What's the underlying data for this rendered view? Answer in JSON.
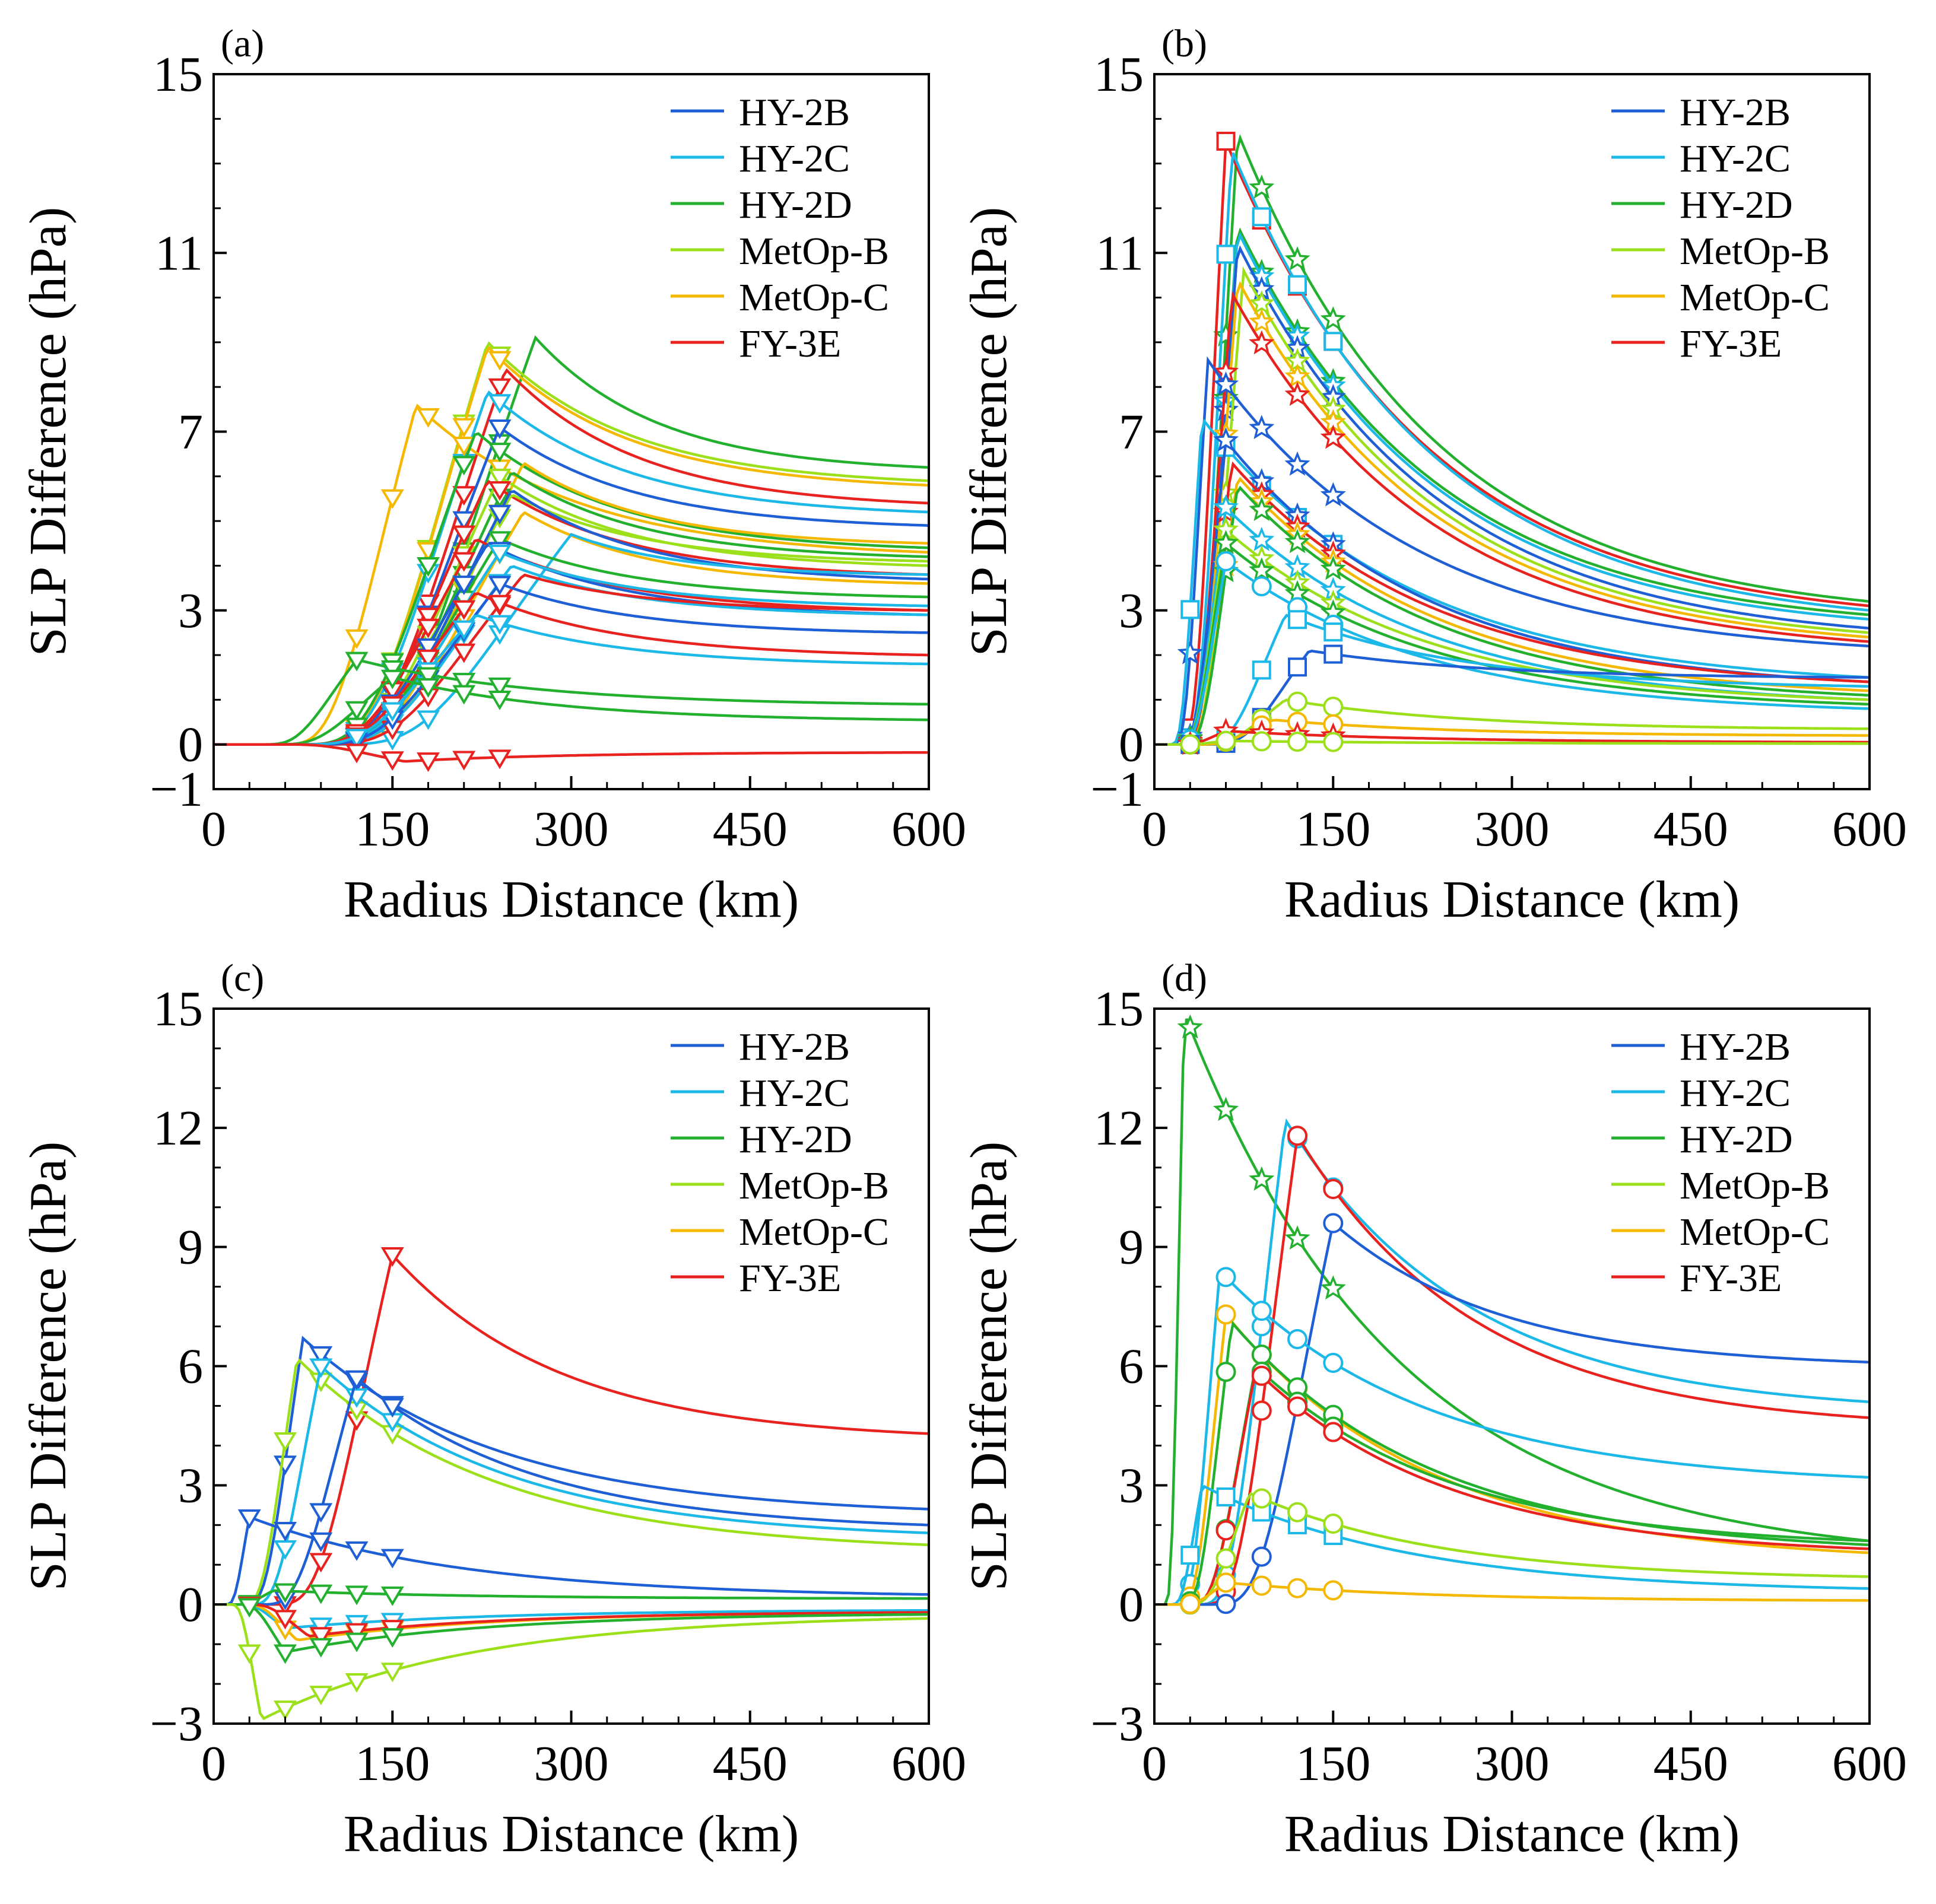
{
  "figure": {
    "type": "multi-panel line chart",
    "panels": 4
  },
  "chart_data": [
    {
      "type": "line",
      "panel_label": "(a)",
      "xlabel": "Radius Distance (km)",
      "ylabel": "SLP Difference (hPa)",
      "xlim": [
        0,
        600
      ],
      "ylim": [
        -1,
        15
      ],
      "xticks": [
        "0",
        "150",
        "300",
        "450",
        "600"
      ],
      "yticks": [
        "-1",
        "0",
        "3",
        "7",
        "11",
        "15"
      ],
      "ytick_values": [
        -1,
        0,
        3,
        7,
        11,
        15
      ],
      "grid": false,
      "legend": "top-right",
      "legend_entries": [
        {
          "name": "HY-2B",
          "color": "#1f5fd6"
        },
        {
          "name": "HY-2C",
          "color": "#1bb8e8"
        },
        {
          "name": "HY-2D",
          "color": "#22b02e"
        },
        {
          "name": "MetOp-B",
          "color": "#9be01a"
        },
        {
          "name": "MetOp-C",
          "color": "#f5b800"
        },
        {
          "name": "FY-3E",
          "color": "#e8221f"
        }
      ],
      "marker": "triangle-down",
      "marker_x": [
        120,
        150,
        180,
        210,
        240
      ],
      "series": [
        {
          "name": "HY-2D",
          "color": "#22b02e",
          "peak": 9.1,
          "rmax": 270,
          "tail": 6.2
        },
        {
          "name": "MetOp-B",
          "color": "#9be01a",
          "peak": 9.0,
          "rmax": 230,
          "tail": 5.9
        },
        {
          "name": "MetOp-C",
          "color": "#f5b800",
          "peak": 8.9,
          "rmax": 230,
          "tail": 5.8
        },
        {
          "name": "FY-3E",
          "color": "#e8221f",
          "peak": 8.4,
          "rmax": 245,
          "tail": 5.4
        },
        {
          "name": "HY-2C",
          "color": "#1bb8e8",
          "peak": 7.9,
          "rmax": 230,
          "tail": 5.2
        },
        {
          "name": "MetOp-C",
          "color": "#f5b800",
          "peak": 7.6,
          "rmax": 170,
          "tail": 4.3
        },
        {
          "name": "HY-2B",
          "color": "#1f5fd6",
          "peak": 7.1,
          "rmax": 240,
          "tail": 4.9
        },
        {
          "name": "HY-2D",
          "color": "#22b02e",
          "peak": 7.0,
          "rmax": 220,
          "tail": 4.4
        },
        {
          "name": "MetOp-C",
          "color": "#f5b800",
          "peak": 6.3,
          "rmax": 260,
          "tail": 4.5
        },
        {
          "name": "HY-2D",
          "color": "#22b02e",
          "peak": 6.1,
          "rmax": 250,
          "tail": 4.2
        },
        {
          "name": "MetOp-B",
          "color": "#9be01a",
          "peak": 6.0,
          "rmax": 240,
          "tail": 4.0
        },
        {
          "name": "FY-3E",
          "color": "#e8221f",
          "peak": 5.9,
          "rmax": 230,
          "tail": 3.8
        },
        {
          "name": "MetOp-B",
          "color": "#9be01a",
          "peak": 5.6,
          "rmax": 250,
          "tail": 4.1
        },
        {
          "name": "HY-2B",
          "color": "#1f5fd6",
          "peak": 5.7,
          "rmax": 250,
          "tail": 3.7
        },
        {
          "name": "MetOp-C",
          "color": "#f5b800",
          "peak": 5.2,
          "rmax": 260,
          "tail": 3.6
        },
        {
          "name": "HY-2C",
          "color": "#1bb8e8",
          "peak": 4.7,
          "rmax": 300,
          "tail": 3.8
        },
        {
          "name": "HY-2D",
          "color": "#22b02e",
          "peak": 4.6,
          "rmax": 240,
          "tail": 3.3
        },
        {
          "name": "FY-3E",
          "color": "#e8221f",
          "peak": 4.6,
          "rmax": 220,
          "tail": 3.0
        },
        {
          "name": "HY-2B",
          "color": "#1f5fd6",
          "peak": 4.5,
          "rmax": 230,
          "tail": 2.9
        },
        {
          "name": "HY-2C",
          "color": "#1bb8e8",
          "peak": 4.3,
          "rmax": 240,
          "tail": 3.1
        },
        {
          "name": "HY-2C",
          "color": "#1bb8e8",
          "peak": 4.0,
          "rmax": 250,
          "tail": 2.9
        },
        {
          "name": "FY-3E",
          "color": "#e8221f",
          "peak": 3.8,
          "rmax": 260,
          "tail": 3.0
        },
        {
          "name": "HY-2B",
          "color": "#1f5fd6",
          "peak": 3.6,
          "rmax": 240,
          "tail": 2.5
        },
        {
          "name": "FY-3E",
          "color": "#e8221f",
          "peak": 3.4,
          "rmax": 220,
          "tail": 2.0
        },
        {
          "name": "HY-2C",
          "color": "#1bb8e8",
          "peak": 2.9,
          "rmax": 220,
          "tail": 1.8
        },
        {
          "name": "HY-2D",
          "color": "#22b02e",
          "peak": 1.9,
          "rmax": 120,
          "tail": 0.9
        },
        {
          "name": "HY-2D",
          "color": "#22b02e",
          "peak": 1.5,
          "rmax": 150,
          "tail": 0.55
        },
        {
          "name": "FY-3E",
          "color": "#e8221f",
          "peak": -0.38,
          "rmax": 160,
          "tail": -0.18
        }
      ]
    },
    {
      "type": "line",
      "panel_label": "(b)",
      "xlabel": "Radius Distance (km)",
      "ylabel": "SLP Difference (hPa)",
      "xlim": [
        0,
        600
      ],
      "ylim": [
        -1,
        15
      ],
      "xticks": [
        "0",
        "150",
        "300",
        "450",
        "600"
      ],
      "yticks": [
        "-1",
        "0",
        "3",
        "7",
        "11",
        "15"
      ],
      "ytick_values": [
        -1,
        0,
        3,
        7,
        11,
        15
      ],
      "grid": false,
      "legend": "top-right",
      "legend_entries": [
        {
          "name": "HY-2B",
          "color": "#1f5fd6"
        },
        {
          "name": "HY-2C",
          "color": "#1bb8e8"
        },
        {
          "name": "HY-2D",
          "color": "#22b02e"
        },
        {
          "name": "MetOp-B",
          "color": "#9be01a"
        },
        {
          "name": "MetOp-C",
          "color": "#f5b800"
        },
        {
          "name": "FY-3E",
          "color": "#e8221f"
        }
      ],
      "marker": "star/square/circle",
      "marker_x": [
        30,
        60,
        90,
        120,
        150
      ],
      "series": [
        {
          "name": "HY-2D",
          "color": "#22b02e",
          "peak": 13.7,
          "rmax": 70,
          "tail": 3.2,
          "marker": "star"
        },
        {
          "name": "FY-3E",
          "color": "#e8221f",
          "peak": 13.5,
          "rmax": 60,
          "tail": 3.1,
          "marker": "square"
        },
        {
          "name": "HY-2C",
          "color": "#1bb8e8",
          "peak": 13.3,
          "rmax": 65,
          "tail": 3.0,
          "marker": "square"
        },
        {
          "name": "HY-2D",
          "color": "#22b02e",
          "peak": 11.6,
          "rmax": 70,
          "tail": 2.9,
          "marker": "star"
        },
        {
          "name": "HY-2C",
          "color": "#1bb8e8",
          "peak": 11.5,
          "rmax": 70,
          "tail": 2.8,
          "marker": "star"
        },
        {
          "name": "HY-2B",
          "color": "#1f5fd6",
          "peak": 11.2,
          "rmax": 70,
          "tail": 2.6,
          "marker": "star"
        },
        {
          "name": "MetOp-B",
          "color": "#9be01a",
          "peak": 10.6,
          "rmax": 75,
          "tail": 2.5,
          "marker": "star"
        },
        {
          "name": "MetOp-C",
          "color": "#f5b800",
          "peak": 10.4,
          "rmax": 70,
          "tail": 2.4,
          "marker": "star"
        },
        {
          "name": "FY-3E",
          "color": "#e8221f",
          "peak": 10.1,
          "rmax": 65,
          "tail": 2.3,
          "marker": "star"
        },
        {
          "name": "HY-2B",
          "color": "#1f5fd6",
          "peak": 8.6,
          "rmax": 45,
          "tail": 2.2,
          "marker": "star"
        },
        {
          "name": "HY-2C",
          "color": "#1bb8e8",
          "peak": 7.3,
          "rmax": 40,
          "tail": 1.5,
          "marker": "square"
        },
        {
          "name": "HY-2B",
          "color": "#1f5fd6",
          "peak": 6.8,
          "rmax": 60,
          "tail": 1.4,
          "marker": "star"
        },
        {
          "name": "FY-3E",
          "color": "#e8221f",
          "peak": 6.3,
          "rmax": 65,
          "tail": 1.4,
          "marker": "star"
        },
        {
          "name": "MetOp-C",
          "color": "#f5b800",
          "peak": 6.0,
          "rmax": 70,
          "tail": 1.2,
          "marker": "star"
        },
        {
          "name": "HY-2D",
          "color": "#22b02e",
          "peak": 5.8,
          "rmax": 70,
          "tail": 1.1,
          "marker": "star"
        },
        {
          "name": "HY-2C",
          "color": "#1bb8e8",
          "peak": 5.3,
          "rmax": 60,
          "tail": 1.0,
          "marker": "star"
        },
        {
          "name": "MetOp-B",
          "color": "#9be01a",
          "peak": 4.8,
          "rmax": 60,
          "tail": 1.0,
          "marker": "star"
        },
        {
          "name": "HY-2D",
          "color": "#22b02e",
          "peak": 4.5,
          "rmax": 60,
          "tail": 0.9,
          "marker": "star"
        },
        {
          "name": "HY-2C",
          "color": "#1bb8e8",
          "peak": 4.1,
          "rmax": 60,
          "tail": 0.8,
          "marker": "circle"
        },
        {
          "name": "HY-2C",
          "color": "#1bb8e8",
          "peak": 2.9,
          "rmax": 110,
          "tail": 1.3,
          "marker": "square"
        },
        {
          "name": "HY-2B",
          "color": "#1f5fd6",
          "peak": 2.1,
          "rmax": 130,
          "tail": 1.5,
          "marker": "square"
        },
        {
          "name": "MetOp-B",
          "color": "#9be01a",
          "peak": 1.0,
          "rmax": 110,
          "tail": 0.35,
          "marker": "circle"
        },
        {
          "name": "MetOp-C",
          "color": "#f5b800",
          "peak": 0.55,
          "rmax": 100,
          "tail": 0.2,
          "marker": "circle"
        },
        {
          "name": "FY-3E",
          "color": "#e8221f",
          "peak": 0.3,
          "rmax": 60,
          "tail": 0.05,
          "marker": "star"
        },
        {
          "name": "MetOp-B",
          "color": "#9be01a",
          "peak": 0.08,
          "rmax": 60,
          "tail": 0.02,
          "marker": "circle"
        }
      ]
    },
    {
      "type": "line",
      "panel_label": "(c)",
      "xlabel": "Radius Distance (km)",
      "ylabel": "SLP Difference (hPa)",
      "xlim": [
        0,
        600
      ],
      "ylim": [
        -3,
        15
      ],
      "xticks": [
        "0",
        "150",
        "300",
        "450",
        "600"
      ],
      "yticks": [
        "-3",
        "0",
        "3",
        "6",
        "9",
        "12",
        "15"
      ],
      "ytick_values": [
        -3,
        0,
        3,
        6,
        9,
        12,
        15
      ],
      "grid": false,
      "legend": "top-right",
      "legend_entries": [
        {
          "name": "HY-2B",
          "color": "#1f5fd6"
        },
        {
          "name": "HY-2C",
          "color": "#1bb8e8"
        },
        {
          "name": "HY-2D",
          "color": "#22b02e"
        },
        {
          "name": "MetOp-B",
          "color": "#9be01a"
        },
        {
          "name": "MetOp-C",
          "color": "#f5b800"
        },
        {
          "name": "FY-3E",
          "color": "#e8221f"
        }
      ],
      "marker": "triangle-down",
      "marker_x": [
        30,
        60,
        90,
        120,
        150
      ],
      "series": [
        {
          "name": "FY-3E",
          "color": "#e8221f",
          "peak": 8.8,
          "rmax": 150,
          "tail": 4.3
        },
        {
          "name": "HY-2B",
          "color": "#1f5fd6",
          "peak": 6.7,
          "rmax": 75,
          "tail": 2.4
        },
        {
          "name": "MetOp-B",
          "color": "#9be01a",
          "peak": 6.2,
          "rmax": 70,
          "tail": 1.5
        },
        {
          "name": "HY-2C",
          "color": "#1bb8e8",
          "peak": 6.0,
          "rmax": 90,
          "tail": 1.8
        },
        {
          "name": "HY-2B",
          "color": "#1f5fd6",
          "peak": 5.7,
          "rmax": 120,
          "tail": 2.0
        },
        {
          "name": "HY-2B",
          "color": "#1f5fd6",
          "peak": 2.2,
          "rmax": 30,
          "tail": 0.25
        },
        {
          "name": "HY-2D",
          "color": "#22b02e",
          "peak": 0.35,
          "rmax": 50,
          "tail": 0.15
        },
        {
          "name": "HY-2C",
          "color": "#1bb8e8",
          "peak": -0.6,
          "rmax": 60,
          "tail": -0.15
        },
        {
          "name": "MetOp-C",
          "color": "#f5b800",
          "peak": -0.9,
          "rmax": 70,
          "tail": -0.2
        },
        {
          "name": "FY-3E",
          "color": "#e8221f",
          "peak": -0.8,
          "rmax": 80,
          "tail": -0.2
        },
        {
          "name": "HY-2D",
          "color": "#22b02e",
          "peak": -1.2,
          "rmax": 60,
          "tail": -0.25
        },
        {
          "name": "MetOp-B",
          "color": "#9be01a",
          "peak": -2.9,
          "rmax": 40,
          "tail": -0.35
        }
      ]
    },
    {
      "type": "line",
      "panel_label": "(d)",
      "xlabel": "Radius Distance (km)",
      "ylabel": "SLP Difference (hPa)",
      "xlim": [
        0,
        600
      ],
      "ylim": [
        -3,
        15
      ],
      "xticks": [
        "0",
        "150",
        "300",
        "450",
        "600"
      ],
      "yticks": [
        "-3",
        "0",
        "3",
        "6",
        "9",
        "12",
        "15"
      ],
      "ytick_values": [
        -3,
        0,
        3,
        6,
        9,
        12,
        15
      ],
      "grid": false,
      "legend": "top-right",
      "legend_entries": [
        {
          "name": "HY-2B",
          "color": "#1f5fd6"
        },
        {
          "name": "HY-2C",
          "color": "#1bb8e8"
        },
        {
          "name": "HY-2D",
          "color": "#22b02e"
        },
        {
          "name": "MetOp-B",
          "color": "#9be01a"
        },
        {
          "name": "MetOp-C",
          "color": "#f5b800"
        },
        {
          "name": "FY-3E",
          "color": "#e8221f"
        }
      ],
      "marker": "circle/square/star",
      "marker_x": [
        30,
        60,
        90,
        120,
        150
      ],
      "series": [
        {
          "name": "HY-2D",
          "color": "#22b02e",
          "peak": 14.9,
          "rmax": 25,
          "tail": 1.6,
          "marker": "star"
        },
        {
          "name": "HY-2C",
          "color": "#1bb8e8",
          "peak": 12.2,
          "rmax": 110,
          "tail": 5.1,
          "marker": "circle"
        },
        {
          "name": "FY-3E",
          "color": "#e8221f",
          "peak": 11.8,
          "rmax": 120,
          "tail": 4.7,
          "marker": "circle"
        },
        {
          "name": "HY-2B",
          "color": "#1f5fd6",
          "peak": 9.6,
          "rmax": 150,
          "tail": 6.1,
          "marker": "circle"
        },
        {
          "name": "HY-2C",
          "color": "#1bb8e8",
          "peak": 8.4,
          "rmax": 55,
          "tail": 3.2,
          "marker": "circle"
        },
        {
          "name": "MetOp-C",
          "color": "#f5b800",
          "peak": 7.3,
          "rmax": 60,
          "tail": 1.3,
          "marker": "circle"
        },
        {
          "name": "HY-2D",
          "color": "#22b02e",
          "peak": 7.1,
          "rmax": 65,
          "tail": 1.5,
          "marker": "circle"
        },
        {
          "name": "HY-2D",
          "color": "#22b02e",
          "peak": 6.0,
          "rmax": 85,
          "tail": 1.6,
          "marker": "circle"
        },
        {
          "name": "FY-3E",
          "color": "#e8221f",
          "peak": 5.9,
          "rmax": 85,
          "tail": 1.4,
          "marker": "circle"
        },
        {
          "name": "HY-2C",
          "color": "#1bb8e8",
          "peak": 3.0,
          "rmax": 40,
          "tail": 0.4,
          "marker": "square"
        },
        {
          "name": "MetOp-B",
          "color": "#9be01a",
          "peak": 2.8,
          "rmax": 80,
          "tail": 0.7,
          "marker": "circle"
        },
        {
          "name": "MetOp-C",
          "color": "#f5b800",
          "peak": 0.55,
          "rmax": 60,
          "tail": 0.1,
          "marker": "circle"
        }
      ]
    }
  ]
}
